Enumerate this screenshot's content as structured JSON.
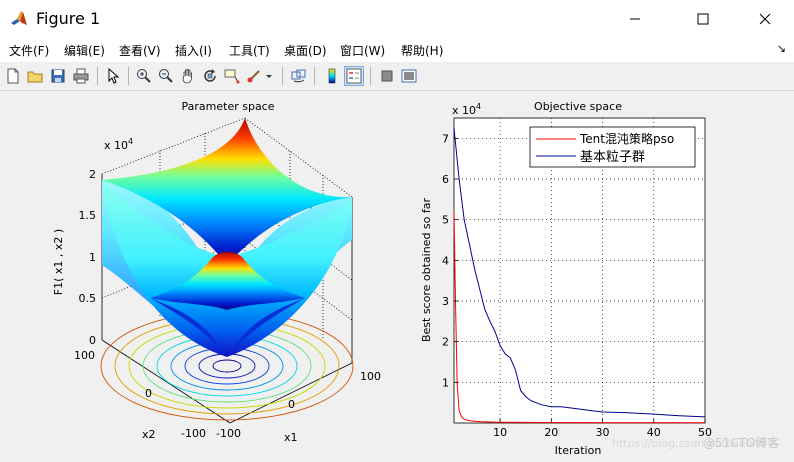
{
  "window": {
    "title": "Figure 1",
    "controls": {
      "minimize": "minimize",
      "maximize": "maximize",
      "close": "close"
    }
  },
  "menu": {
    "items": [
      "文件(F)",
      "编辑(E)",
      "查看(V)",
      "插入(I)",
      "工具(T)",
      "桌面(D)",
      "窗口(W)",
      "帮助(H)"
    ],
    "overflow": "↘"
  },
  "toolbar": {
    "icons": [
      "new-figure-icon",
      "open-file-icon",
      "save-icon",
      "print-icon",
      "pointer-icon",
      "zoom-in-icon",
      "zoom-out-icon",
      "pan-icon",
      "rotate-3d-icon",
      "data-cursor-icon",
      "brush-icon",
      "link-plot-icon",
      "colorbar-icon",
      "legend-icon",
      "hide-plot-tools-icon",
      "show-plot-tools-icon"
    ]
  },
  "left_plot": {
    "title": "Parameter space",
    "exponent_label": "x 10",
    "exponent_power": "4",
    "z_ticks": [
      "0",
      "0.5",
      "1",
      "1.5",
      "2"
    ],
    "zlabel": "F1( x1 , x2 )",
    "x1_ticks": [
      "-100",
      "0",
      "100"
    ],
    "x2_ticks": [
      "100",
      "0",
      "-100"
    ],
    "xlabel": "x1",
    "ylabel": "x2",
    "colormap": [
      "#00008f",
      "#0050ff",
      "#00dfff",
      "#70ff8f",
      "#ffdf00",
      "#ff5000",
      "#800000"
    ]
  },
  "chart_data": {
    "type": "line",
    "title": "Objective space",
    "xlabel": "Iteration",
    "ylabel": "Best score obtained so far",
    "exponent_label": "x 10",
    "exponent_power": "4",
    "xlim": [
      1,
      50
    ],
    "ylim": [
      0,
      75000
    ],
    "x_ticks": [
      10,
      20,
      30,
      40,
      50
    ],
    "y_ticks": [
      10000,
      20000,
      30000,
      40000,
      50000,
      60000,
      70000
    ],
    "y_tick_labels": [
      "1",
      "2",
      "3",
      "4",
      "5",
      "6",
      "7"
    ],
    "grid": true,
    "legend_position": "top-right",
    "series": [
      {
        "name": "Tent混沌策略pso",
        "color": "#ff0000",
        "x": [
          1,
          1.3,
          1.6,
          2,
          2.5,
          3,
          4,
          5,
          6,
          8,
          10,
          15,
          20,
          30,
          40,
          50
        ],
        "y": [
          52000,
          30000,
          10000,
          3000,
          1500,
          900,
          600,
          450,
          350,
          250,
          200,
          150,
          120,
          100,
          90,
          80
        ]
      },
      {
        "name": "基本粒子群",
        "color": "#00008f",
        "x": [
          1,
          2,
          3,
          4,
          5,
          6,
          7,
          8,
          9,
          10,
          11,
          12,
          13,
          14,
          15,
          16,
          18,
          20,
          22,
          25,
          28,
          30,
          35,
          40,
          45,
          50
        ],
        "y": [
          72500,
          60000,
          50000,
          44000,
          38000,
          33000,
          28000,
          25000,
          22500,
          19000,
          17000,
          16000,
          13000,
          8000,
          6500,
          5500,
          4500,
          4000,
          4000,
          3500,
          3000,
          2700,
          2500,
          2200,
          1800,
          1500
        ]
      }
    ]
  },
  "watermark": "https://blog.csdn.net/weixin",
  "watermark_tag": "@51CTO博客"
}
